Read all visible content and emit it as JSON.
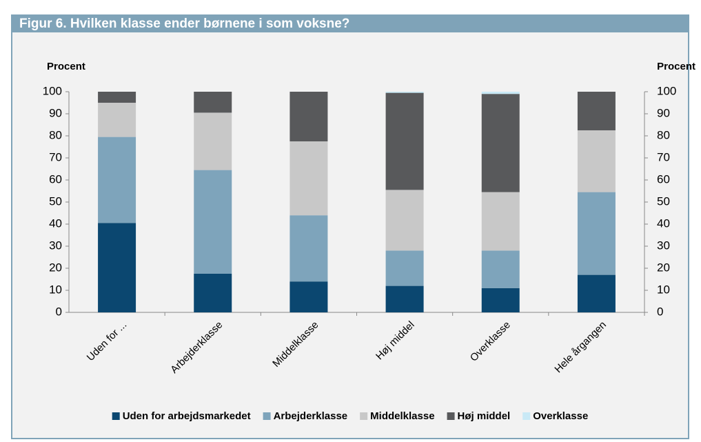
{
  "chart_data": {
    "type": "stacked_bar",
    "title": "Figur 6. Hvilken klasse ender børnene i som voksne?",
    "y_label": "Procent",
    "y2_label": "Procent",
    "categories": [
      "Uden for ...",
      "Arbejderklasse",
      "Middelklasse",
      "Høj middel",
      "Overklasse",
      "Hele årgangen"
    ],
    "series": [
      {
        "name": "Uden for arbejdsmarkedet",
        "color": "#0b4770",
        "values": [
          40.5,
          17.5,
          14,
          12,
          11,
          17
        ]
      },
      {
        "name": "Arbejderklasse",
        "color": "#7ea4bb",
        "values": [
          39,
          47,
          30,
          16,
          17,
          37.5
        ]
      },
      {
        "name": "Middelklasse",
        "color": "#c8c8c8",
        "values": [
          15.5,
          26,
          33.5,
          27.5,
          26.5,
          28
        ]
      },
      {
        "name": "Høj middel",
        "color": "#58595b",
        "values": [
          5,
          9.5,
          22.5,
          44,
          44.5,
          17.5
        ]
      },
      {
        "name": "Overklasse",
        "color": "#c9e9f6",
        "values": [
          0,
          0,
          0,
          0.5,
          1,
          0
        ]
      }
    ],
    "ylim": [
      0,
      100
    ],
    "yticks": [
      0,
      10,
      20,
      30,
      40,
      50,
      60,
      70,
      80,
      90,
      100
    ],
    "y2lim": [
      0,
      100
    ],
    "y2ticks": [
      0,
      10,
      20,
      30,
      40,
      50,
      60,
      70,
      80,
      90,
      100
    ],
    "legend": "bottom"
  }
}
